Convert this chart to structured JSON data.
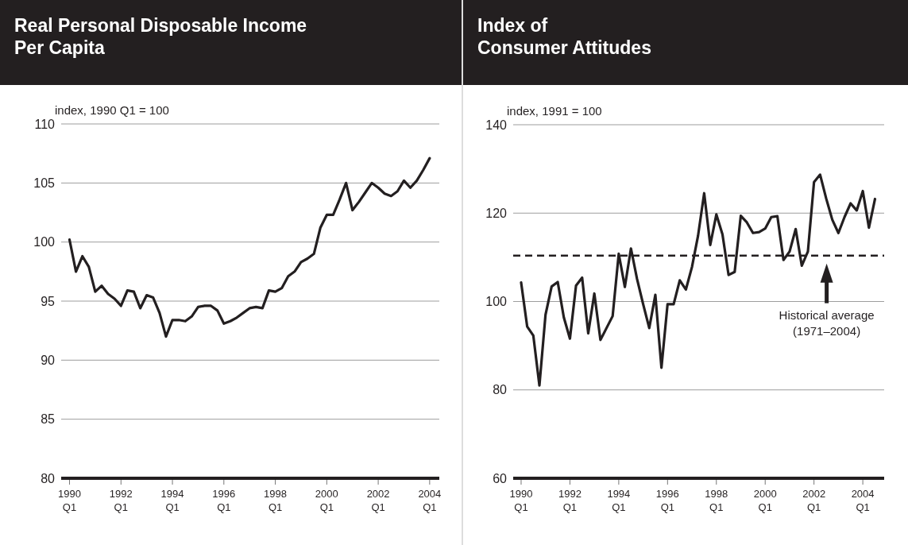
{
  "chart_data": [
    {
      "type": "line",
      "title": "Real Personal Disposable Income\nPer Capita",
      "ylabel": "index, 1990 Q1 = 100",
      "grid": "y",
      "marker": "none",
      "line_style": "solid",
      "ylim": [
        80,
        110
      ],
      "yticks": [
        80,
        85,
        90,
        95,
        100,
        105,
        110
      ],
      "categories": [
        "1990\nQ1",
        null,
        null,
        null,
        null,
        null,
        null,
        null,
        "1992\nQ1",
        null,
        null,
        null,
        null,
        null,
        null,
        null,
        "1994\nQ1",
        null,
        null,
        null,
        null,
        null,
        null,
        null,
        "1996\nQ1",
        null,
        null,
        null,
        null,
        null,
        null,
        null,
        "1998\nQ1",
        null,
        null,
        null,
        null,
        null,
        null,
        null,
        "2000\nQ1",
        null,
        null,
        null,
        null,
        null,
        null,
        null,
        "2002\nQ1",
        null,
        null,
        null,
        null,
        null,
        null,
        null,
        "2004\nQ1"
      ],
      "series": [
        {
          "color": "#231f20",
          "values": [
            100.2,
            97.5,
            98.8,
            97.9,
            95.8,
            96.3,
            95.6,
            95.2,
            94.6,
            95.9,
            95.8,
            94.4,
            95.5,
            95.3,
            94.0,
            92.0,
            93.4,
            93.4,
            93.3,
            93.7,
            94.5,
            94.6,
            94.6,
            94.2,
            93.1,
            93.3,
            93.6,
            94.0,
            94.4,
            94.5,
            94.4,
            95.9,
            95.8,
            96.1,
            97.1,
            97.5,
            98.3,
            98.6,
            99.0,
            101.2,
            102.3,
            102.3,
            103.6,
            105.0,
            102.7,
            103.4,
            104.2,
            105.0,
            104.6,
            104.1,
            103.9,
            104.3,
            105.2,
            104.6,
            105.2,
            106.1,
            107.1
          ]
        }
      ]
    },
    {
      "type": "line",
      "title": "Index of\nConsumer Attitudes",
      "ylabel": "index, 1991 = 100",
      "grid": "y",
      "marker": "none",
      "line_style": "solid",
      "ylim": [
        60,
        140
      ],
      "yticks": [
        60,
        80,
        100,
        120,
        140
      ],
      "categories": [
        "1990\nQ1",
        null,
        null,
        null,
        null,
        null,
        null,
        null,
        "1992\nQ1",
        null,
        null,
        null,
        null,
        null,
        null,
        null,
        "1994\nQ1",
        null,
        null,
        null,
        null,
        null,
        null,
        null,
        "1996\nQ1",
        null,
        null,
        null,
        null,
        null,
        null,
        null,
        "1998\nQ1",
        null,
        null,
        null,
        null,
        null,
        null,
        null,
        "2000\nQ1",
        null,
        null,
        null,
        null,
        null,
        null,
        null,
        "2002\nQ1",
        null,
        null,
        null,
        null,
        null,
        null,
        null,
        "2004\nQ1",
        null,
        null
      ],
      "ref_lines": [
        {
          "axis": "y",
          "value": 110.4,
          "color": "#231f20",
          "line_style": "dashed"
        }
      ],
      "annotations": [
        "Historical average\n(1971–2004)"
      ],
      "series": [
        {
          "color": "#231f20",
          "values": [
            104.3,
            94.3,
            92.3,
            81,
            97.0,
            103.4,
            104.4,
            96.4,
            91.6,
            103.6,
            105.4,
            92.8,
            101.8,
            91.3,
            94.0,
            96.7,
            110.8,
            103.3,
            112,
            105.1,
            99.4,
            94.0,
            101.5,
            85.0,
            99.4,
            99.4,
            104.8,
            102.7,
            107.8,
            114.9,
            124.5,
            112.8,
            119.7,
            115.2,
            106.0,
            106.7,
            119.4,
            117.9,
            115.5,
            115.7,
            116.5,
            119.1,
            119.3,
            109.4,
            111.3,
            116.4,
            108.1,
            111.3,
            127.0,
            128.7,
            123.3,
            118.5,
            115.5,
            119.1,
            122.2,
            120.6,
            125.0,
            116.7,
            123.2
          ]
        }
      ]
    }
  ]
}
